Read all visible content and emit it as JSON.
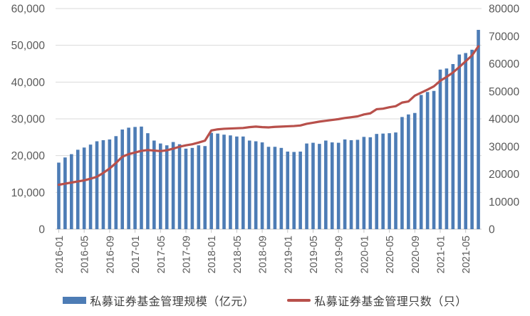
{
  "chart_data": {
    "type": "bar",
    "combo": "bar+line dual-axis",
    "title": "",
    "grid": true,
    "legend_position": "bottom",
    "x": [
      "2016-01",
      "2016-02",
      "2016-03",
      "2016-04",
      "2016-05",
      "2016-06",
      "2016-07",
      "2016-08",
      "2016-09",
      "2016-10",
      "2016-11",
      "2016-12",
      "2017-01",
      "2017-02",
      "2017-03",
      "2017-04",
      "2017-05",
      "2017-06",
      "2017-07",
      "2017-08",
      "2017-09",
      "2017-10",
      "2017-11",
      "2017-12",
      "2018-01",
      "2018-02",
      "2018-03",
      "2018-04",
      "2018-05",
      "2018-06",
      "2018-07",
      "2018-08",
      "2018-09",
      "2018-10",
      "2018-11",
      "2018-12",
      "2019-01",
      "2019-02",
      "2019-03",
      "2019-04",
      "2019-05",
      "2019-06",
      "2019-07",
      "2019-08",
      "2019-09",
      "2019-10",
      "2019-11",
      "2019-12",
      "2020-01",
      "2020-02",
      "2020-03",
      "2020-04",
      "2020-05",
      "2020-06",
      "2020-07",
      "2020-08",
      "2020-09",
      "2020-10",
      "2020-11",
      "2020-12",
      "2021-01",
      "2021-02",
      "2021-03",
      "2021-04",
      "2021-05",
      "2021-06",
      "2021-07"
    ],
    "x_tick_labels": [
      "2016-01",
      "2016-05",
      "2016-09",
      "2017-01",
      "2017-05",
      "2017-09",
      "2018-01",
      "2018-05",
      "2018-09",
      "2019-01",
      "2019-05",
      "2019-09",
      "2020-01",
      "2020-05",
      "2020-09",
      "2021-01",
      "2021-05"
    ],
    "series": [
      {
        "name": "私募证券基金管理规模（亿元）",
        "type": "bar",
        "axis": "left",
        "color": "#4d7cb5",
        "values": [
          18100,
          19500,
          20400,
          21600,
          22200,
          23000,
          23900,
          24200,
          24400,
          25300,
          27100,
          27600,
          27800,
          27900,
          26100,
          24100,
          23300,
          22800,
          23700,
          23100,
          21900,
          22100,
          22800,
          22600,
          26200,
          26000,
          25700,
          25500,
          25200,
          25200,
          24100,
          23900,
          23600,
          22400,
          22400,
          22100,
          21100,
          21000,
          21100,
          23300,
          23500,
          23200,
          24100,
          23600,
          23500,
          24400,
          24200,
          24300,
          25100,
          25000,
          25900,
          26000,
          26100,
          26300,
          30500,
          31200,
          31600,
          36500,
          37300,
          37600,
          43400,
          43700,
          44900,
          47500,
          47900,
          48800,
          54200
        ]
      },
      {
        "name": "私募证券基金管理只数（只）",
        "type": "line",
        "axis": "right",
        "color": "#b8504b",
        "values": [
          16100,
          16500,
          16900,
          17300,
          17700,
          18300,
          19000,
          20400,
          22000,
          24000,
          26300,
          27200,
          27800,
          28400,
          28700,
          28500,
          28300,
          28600,
          29200,
          29900,
          30400,
          30800,
          31400,
          32100,
          35800,
          36200,
          36400,
          36500,
          36600,
          36700,
          37000,
          37200,
          37000,
          36900,
          37100,
          37200,
          37300,
          37400,
          37600,
          38200,
          38600,
          39000,
          39300,
          39600,
          39900,
          40300,
          40600,
          40900,
          41600,
          42000,
          43500,
          43700,
          44200,
          44600,
          45900,
          46300,
          48400,
          49500,
          50600,
          51800,
          53800,
          55200,
          56800,
          58800,
          60900,
          63000,
          66300
        ]
      }
    ],
    "left_axis": {
      "min": 0,
      "max": 60000,
      "step": 10000,
      "tick_labels": [
        "0",
        "10,000",
        "20,000",
        "30,000",
        "40,000",
        "50,000",
        "60,000"
      ]
    },
    "right_axis": {
      "min": 0,
      "max": 80000,
      "step": 10000,
      "tick_labels": [
        "0",
        "10000",
        "20000",
        "30000",
        "40000",
        "50000",
        "60000",
        "70000",
        "80000"
      ]
    }
  },
  "colors": {
    "grid": "#d9d9d9",
    "axis_line": "#c6c6c6",
    "tick_text": "#595959"
  }
}
